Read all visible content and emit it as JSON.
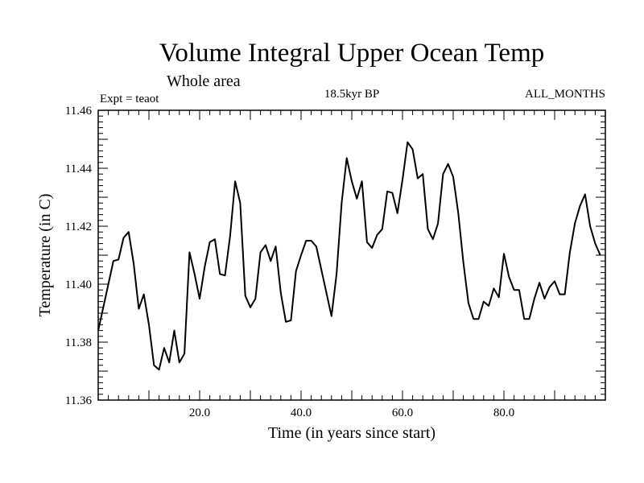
{
  "chart_data": {
    "type": "line",
    "title": "Volume Integral Upper Ocean Temp",
    "subtitle": "Whole area",
    "left_label": "Expt = teaot",
    "center_label": "18.5kyr BP",
    "right_label": "ALL_MONTHS",
    "xlabel": "Time (in years since start)",
    "ylabel": "Temperature (in C)",
    "xlim": [
      0,
      100
    ],
    "ylim": [
      11.36,
      11.46
    ],
    "xticks": [
      20,
      40,
      60,
      80
    ],
    "xtick_labels": [
      "20.0",
      "40.0",
      "60.0",
      "80.0"
    ],
    "yticks": [
      11.36,
      11.38,
      11.4,
      11.42,
      11.44,
      11.46
    ],
    "ytick_labels": [
      "11.36",
      "11.38",
      "11.40",
      "11.42",
      "11.44",
      "11.46"
    ],
    "series": [
      {
        "name": "teaot",
        "color": "#000000",
        "x": [
          0,
          1,
          2,
          3,
          4,
          5,
          6,
          7,
          8,
          9,
          10,
          11,
          12,
          13,
          14,
          15,
          16,
          17,
          18,
          19,
          20,
          21,
          22,
          23,
          24,
          25,
          26,
          27,
          28,
          29,
          30,
          31,
          32,
          33,
          34,
          35,
          36,
          37,
          38,
          39,
          40,
          41,
          42,
          43,
          44,
          45,
          46,
          47,
          48,
          49,
          50,
          51,
          52,
          53,
          54,
          55,
          56,
          57,
          58,
          59,
          60,
          61,
          62,
          63,
          64,
          65,
          66,
          67,
          68,
          69,
          70,
          71,
          72,
          73,
          74,
          75,
          76,
          77,
          78,
          79,
          80,
          81,
          82,
          83,
          84,
          85,
          86,
          87,
          88,
          89,
          90,
          91,
          92,
          93,
          94,
          95,
          96,
          97,
          98,
          99
        ],
        "values": [
          11.384,
          11.392,
          11.4,
          11.408,
          11.4085,
          11.416,
          11.418,
          11.407,
          11.3915,
          11.3965,
          11.386,
          11.372,
          11.3705,
          11.378,
          11.373,
          11.384,
          11.373,
          11.376,
          11.411,
          11.4035,
          11.395,
          11.406,
          11.4145,
          11.4155,
          11.4035,
          11.403,
          11.4165,
          11.4355,
          11.428,
          11.396,
          11.392,
          11.395,
          11.411,
          11.4135,
          11.408,
          11.413,
          11.397,
          11.387,
          11.3875,
          11.4045,
          11.41,
          11.415,
          11.415,
          11.413,
          11.405,
          11.397,
          11.389,
          11.4035,
          11.428,
          11.4435,
          11.4355,
          11.4295,
          11.4355,
          11.4145,
          11.4125,
          11.417,
          11.419,
          11.432,
          11.4315,
          11.4245,
          11.436,
          11.449,
          11.4465,
          11.4365,
          11.438,
          11.419,
          11.4155,
          11.421,
          11.438,
          11.4415,
          11.437,
          11.4245,
          11.4075,
          11.3935,
          11.388,
          11.388,
          11.394,
          11.3925,
          11.3985,
          11.3955,
          11.4105,
          11.4025,
          11.398,
          11.398,
          11.388,
          11.388,
          11.395,
          11.4005,
          11.395,
          11.399,
          11.401,
          11.3965,
          11.3965,
          11.411,
          11.421,
          11.427,
          11.431,
          11.42,
          11.414,
          11.41
        ]
      }
    ]
  }
}
